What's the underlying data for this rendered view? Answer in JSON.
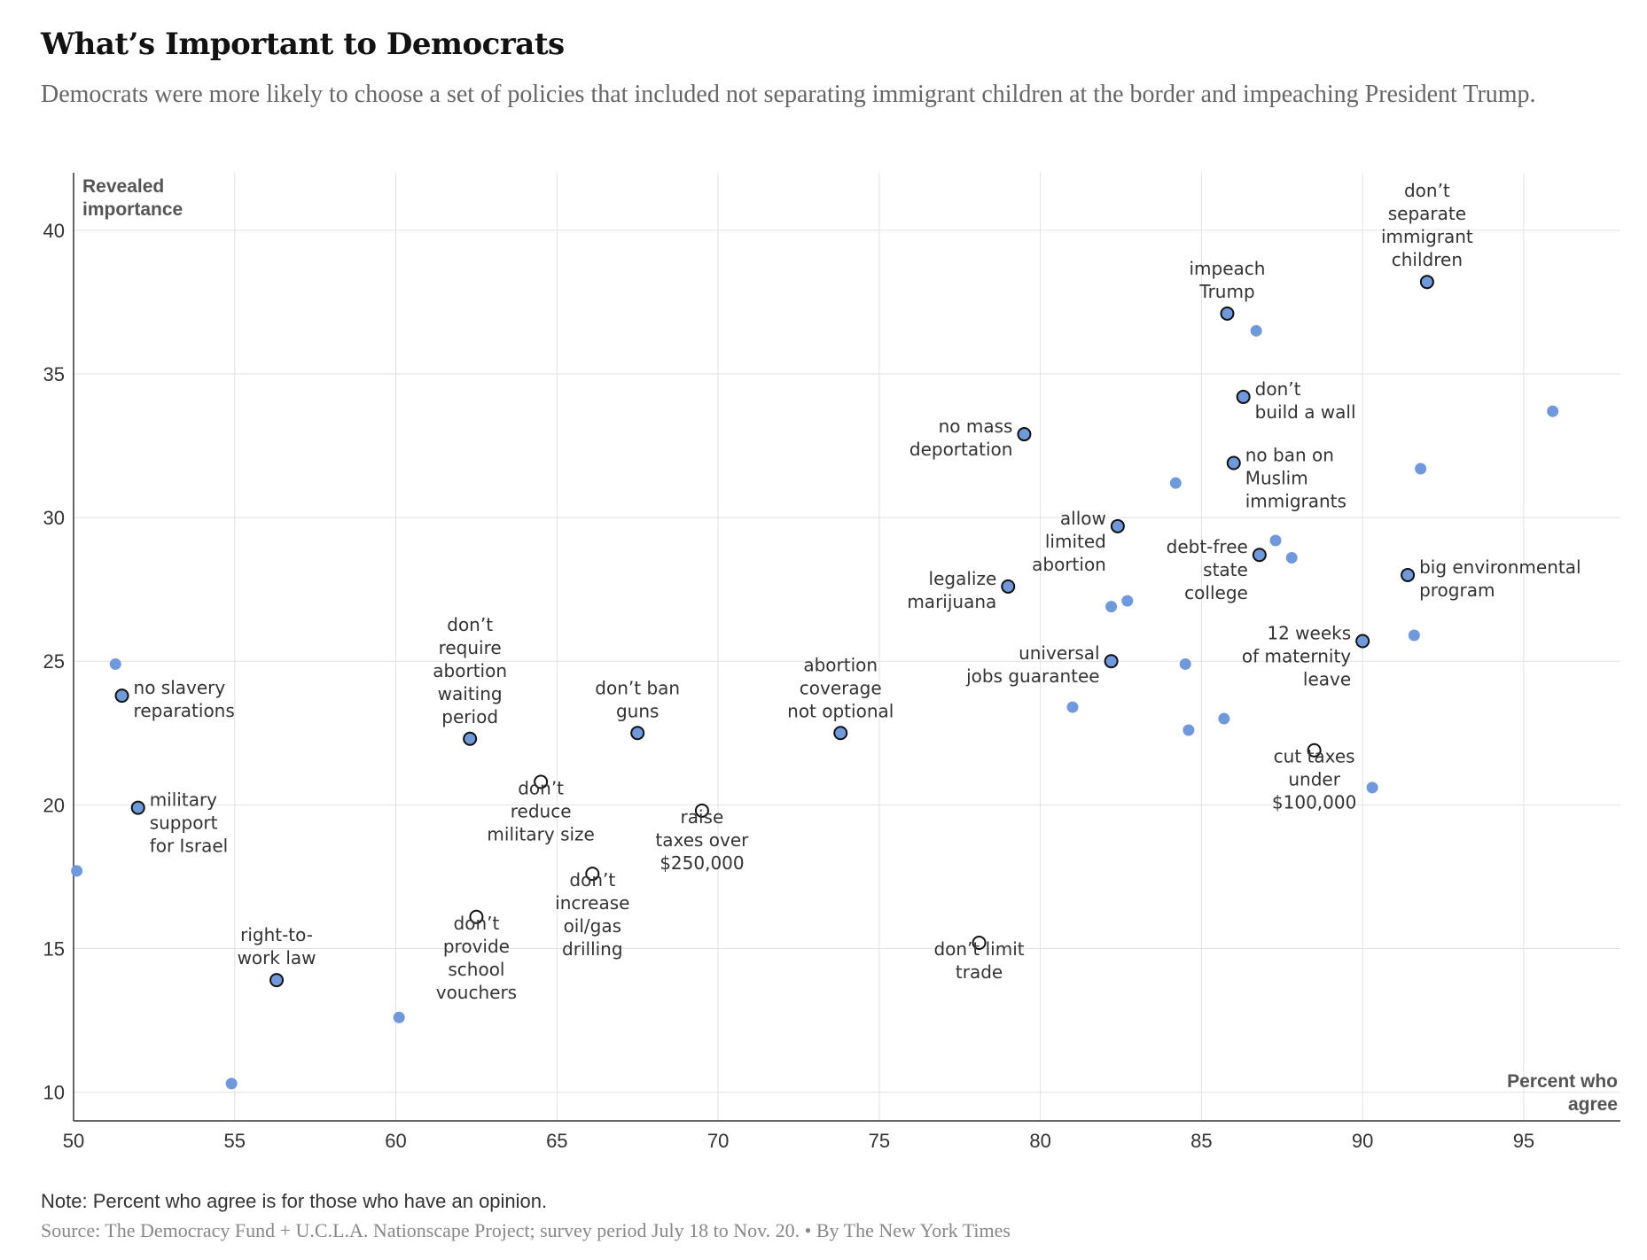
{
  "header": {
    "title": "What’s Important to Democrats",
    "subtitle": "Democrats were more likely to choose a set of policies that included not separating immigrant children at the border and impeaching President Trump."
  },
  "footer": {
    "note": "Note: Percent who agree is for those who have an opinion.",
    "source": "Source: The Democracy Fund + U.C.L.A. Nationscape Project; survey period July 18 to Nov. 20. • By The New York Times"
  },
  "colors": {
    "point_fill": "#7099db",
    "outline": "#111111",
    "grid": "#e2e2e2",
    "hollow_fill": "#ffffff"
  },
  "chart_data": {
    "type": "scatter",
    "xlabel": [
      "Percent who",
      "agree"
    ],
    "ylabel": [
      "Revealed",
      "importance"
    ],
    "xlim": [
      50,
      98
    ],
    "ylim": [
      9,
      42
    ],
    "xticks": [
      50,
      55,
      60,
      65,
      70,
      75,
      80,
      85,
      90,
      95
    ],
    "yticks": [
      10,
      15,
      20,
      25,
      30,
      35,
      40
    ],
    "grid": true,
    "legend": "none",
    "points": [
      {
        "x": 92.0,
        "y": 38.2,
        "style": "outlined",
        "label": [
          "don’t",
          "separate",
          "immigrant",
          "children"
        ],
        "anchor": "above"
      },
      {
        "x": 85.8,
        "y": 37.1,
        "style": "outlined",
        "label": [
          "impeach",
          "Trump"
        ],
        "anchor": "above"
      },
      {
        "x": 86.3,
        "y": 34.2,
        "style": "outlined",
        "label": [
          "don’t",
          "build a wall"
        ],
        "anchor": "right"
      },
      {
        "x": 79.5,
        "y": 32.9,
        "style": "outlined",
        "label": [
          "no mass",
          "deportation"
        ],
        "anchor": "left"
      },
      {
        "x": 86.0,
        "y": 31.9,
        "style": "outlined",
        "label": [
          "no ban on",
          "Muslim",
          "immigrants"
        ],
        "anchor": "right"
      },
      {
        "x": 82.4,
        "y": 29.7,
        "style": "outlined",
        "label": [
          "allow",
          "limited",
          "abortion"
        ],
        "anchor": "left"
      },
      {
        "x": 86.8,
        "y": 28.7,
        "style": "outlined",
        "label": [
          "debt-free",
          "state",
          "college"
        ],
        "anchor": "left"
      },
      {
        "x": 91.4,
        "y": 28.0,
        "style": "outlined",
        "label": [
          "big environmental",
          "program"
        ],
        "anchor": "right"
      },
      {
        "x": 79.0,
        "y": 27.6,
        "style": "outlined",
        "label": [
          "legalize",
          "marijuana"
        ],
        "anchor": "left"
      },
      {
        "x": 90.0,
        "y": 25.7,
        "style": "outlined",
        "label": [
          "12 weeks",
          "of maternity",
          "leave"
        ],
        "anchor": "left"
      },
      {
        "x": 82.2,
        "y": 25.0,
        "style": "outlined",
        "label": [
          "universal",
          "jobs guarantee"
        ],
        "anchor": "left"
      },
      {
        "x": 51.5,
        "y": 23.8,
        "style": "outlined",
        "label": [
          "no slavery",
          "reparations"
        ],
        "anchor": "right"
      },
      {
        "x": 62.3,
        "y": 22.3,
        "style": "outlined",
        "label": [
          "don’t",
          "require",
          "abortion",
          "waiting",
          "period"
        ],
        "anchor": "above"
      },
      {
        "x": 67.5,
        "y": 22.5,
        "style": "outlined",
        "label": [
          "don’t ban",
          "guns"
        ],
        "anchor": "above"
      },
      {
        "x": 73.8,
        "y": 22.5,
        "style": "outlined",
        "label": [
          "abortion",
          "coverage",
          "not optional"
        ],
        "anchor": "above"
      },
      {
        "x": 88.5,
        "y": 21.9,
        "style": "hollow",
        "label": [
          "cut taxes",
          "under",
          "$100,000"
        ],
        "anchor": "below"
      },
      {
        "x": 64.5,
        "y": 20.8,
        "style": "hollow",
        "label": [
          "don’t",
          "reduce",
          "military size"
        ],
        "anchor": "below"
      },
      {
        "x": 52.0,
        "y": 19.9,
        "style": "outlined",
        "label": [
          "military",
          "support",
          "for Israel"
        ],
        "anchor": "right"
      },
      {
        "x": 69.5,
        "y": 19.8,
        "style": "hollow",
        "label": [
          "raise",
          "taxes over",
          "$250,000"
        ],
        "anchor": "below"
      },
      {
        "x": 66.1,
        "y": 17.6,
        "style": "hollow",
        "label": [
          "don’t",
          "increase",
          "oil/gas",
          "drilling"
        ],
        "anchor": "below"
      },
      {
        "x": 62.5,
        "y": 16.1,
        "style": "hollow",
        "label": [
          "don’t",
          "provide",
          "school",
          "vouchers"
        ],
        "anchor": "below"
      },
      {
        "x": 78.1,
        "y": 15.2,
        "style": "hollow",
        "label": [
          "don’t limit",
          "trade"
        ],
        "anchor": "below"
      },
      {
        "x": 56.3,
        "y": 13.9,
        "style": "outlined",
        "label": [
          "right-to-",
          "work law"
        ],
        "anchor": "above"
      },
      {
        "x": 86.7,
        "y": 36.5,
        "style": "plain"
      },
      {
        "x": 95.9,
        "y": 33.7,
        "style": "plain"
      },
      {
        "x": 91.8,
        "y": 31.7,
        "style": "plain"
      },
      {
        "x": 84.2,
        "y": 31.2,
        "style": "plain"
      },
      {
        "x": 87.3,
        "y": 29.2,
        "style": "plain"
      },
      {
        "x": 87.8,
        "y": 28.6,
        "style": "plain"
      },
      {
        "x": 82.7,
        "y": 27.1,
        "style": "plain"
      },
      {
        "x": 82.2,
        "y": 26.9,
        "style": "plain"
      },
      {
        "x": 91.6,
        "y": 25.9,
        "style": "plain"
      },
      {
        "x": 51.3,
        "y": 24.9,
        "style": "plain"
      },
      {
        "x": 84.5,
        "y": 24.9,
        "style": "plain"
      },
      {
        "x": 81.0,
        "y": 23.4,
        "style": "plain"
      },
      {
        "x": 85.7,
        "y": 23.0,
        "style": "plain"
      },
      {
        "x": 84.6,
        "y": 22.6,
        "style": "plain"
      },
      {
        "x": 90.3,
        "y": 20.6,
        "style": "plain"
      },
      {
        "x": 50.1,
        "y": 17.7,
        "style": "plain"
      },
      {
        "x": 60.1,
        "y": 12.6,
        "style": "plain"
      },
      {
        "x": 54.9,
        "y": 10.3,
        "style": "plain"
      }
    ]
  }
}
